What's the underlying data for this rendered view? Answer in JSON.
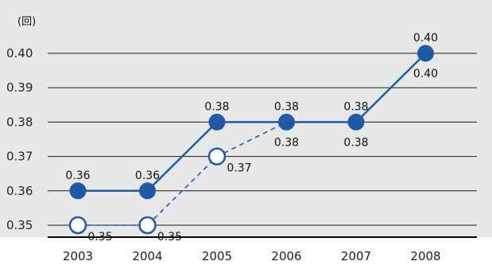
{
  "chart_data": {
    "type": "line",
    "title": "",
    "xlabel": "",
    "ylabel": "(回)",
    "categories": [
      "2003",
      "2004",
      "2005",
      "2006",
      "2007",
      "2008"
    ],
    "ylim": [
      0.35,
      0.4
    ],
    "yticks": [
      "0.35",
      "0.36",
      "0.37",
      "0.38",
      "0.39",
      "0.40"
    ],
    "grid": true,
    "legend": "none",
    "series": [
      {
        "style": "solid line, filled circle markers",
        "color": "#1f5aa6",
        "values": [
          0.36,
          0.36,
          0.38,
          0.38,
          0.38,
          0.4
        ],
        "labels": [
          "0.36",
          "0.36",
          "0.38",
          "0.38",
          "0.38",
          "0.40"
        ],
        "label_position": "above"
      },
      {
        "style": "dashed line, open circle markers",
        "color": "#1f5aa6",
        "values": [
          0.35,
          0.35,
          0.37,
          0.38,
          0.38,
          0.4
        ],
        "labels": [
          "0.35",
          "0.35",
          "0.37",
          "0.38",
          "0.38",
          "0.40"
        ],
        "label_position": "below-right"
      }
    ],
    "colors": {
      "plot_background": "#e8e8e8",
      "grid": "#1a1a1a",
      "series": "#1f5aa6"
    }
  }
}
